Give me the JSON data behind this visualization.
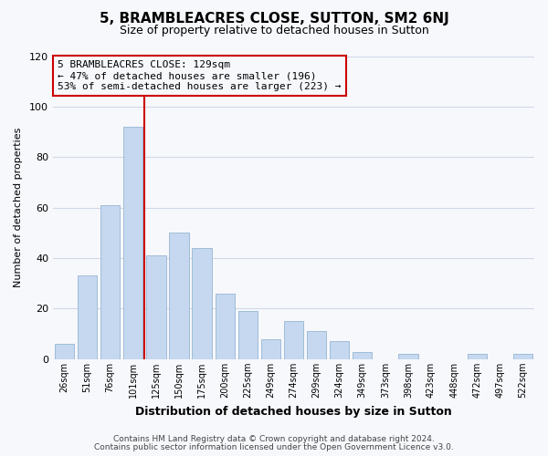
{
  "title": "5, BRAMBLEACRES CLOSE, SUTTON, SM2 6NJ",
  "subtitle": "Size of property relative to detached houses in Sutton",
  "xlabel": "Distribution of detached houses by size in Sutton",
  "ylabel": "Number of detached properties",
  "bar_labels": [
    "26sqm",
    "51sqm",
    "76sqm",
    "101sqm",
    "125sqm",
    "150sqm",
    "175sqm",
    "200sqm",
    "225sqm",
    "249sqm",
    "274sqm",
    "299sqm",
    "324sqm",
    "349sqm",
    "373sqm",
    "398sqm",
    "423sqm",
    "448sqm",
    "472sqm",
    "497sqm",
    "522sqm"
  ],
  "bar_values": [
    6,
    33,
    61,
    92,
    41,
    50,
    44,
    26,
    19,
    8,
    15,
    11,
    7,
    3,
    0,
    2,
    0,
    0,
    2,
    0,
    2
  ],
  "bar_color": "#c5d8f0",
  "bar_edge_color": "#a0bcd8",
  "marker_label": "5 BRAMBLEACRES CLOSE: 129sqm\n← 47% of detached houses are smaller (196)\n53% of semi-detached houses are larger (223) →",
  "vline_color": "#cc0000",
  "annotation_box_edge": "#cc0000",
  "ylim": [
    0,
    120
  ],
  "yticks": [
    0,
    20,
    40,
    60,
    80,
    100,
    120
  ],
  "background_color": "#f7f8fc",
  "grid_color": "#d0d8e8",
  "footer_line1": "Contains HM Land Registry data © Crown copyright and database right 2024.",
  "footer_line2": "Contains public sector information licensed under the Open Government Licence v3.0."
}
